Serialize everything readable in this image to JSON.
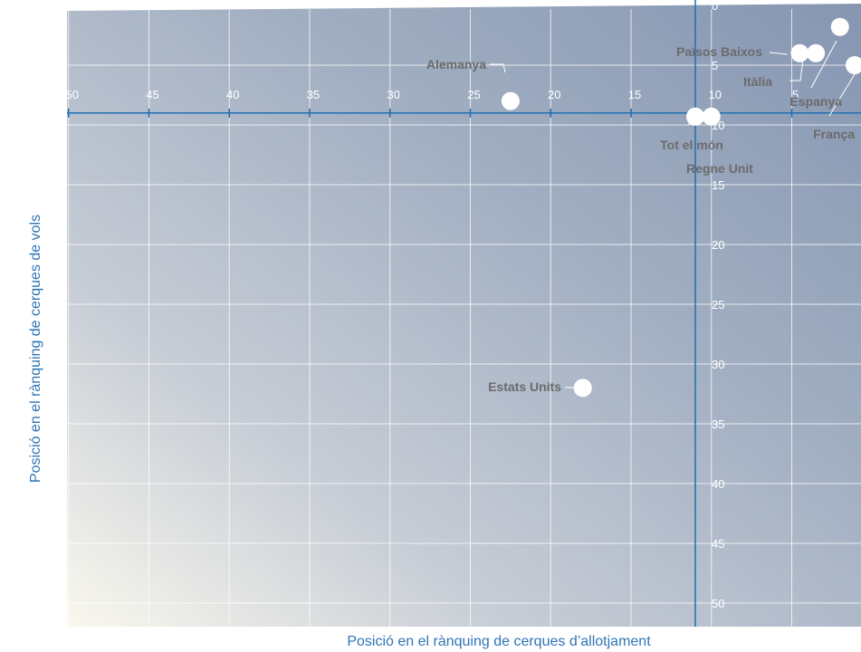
{
  "chart_data": {
    "type": "scatter",
    "title": "",
    "xlabel": "Posició en el rànquing de cerques d’allotjament",
    "ylabel": "Posició en el rànquing de cerques de vols",
    "x_reversed": true,
    "y_reversed": true,
    "xlim": [
      50,
      0
    ],
    "ylim": [
      0,
      52
    ],
    "x_ticks": [
      "50",
      "45",
      "40",
      "35",
      "30",
      "25",
      "20",
      "15",
      "10",
      "5"
    ],
    "y_ticks": [
      "0",
      "5",
      "10",
      "15",
      "20",
      "25",
      "30",
      "35",
      "40",
      "45",
      "50"
    ],
    "grid": true,
    "colors": {
      "axis": "#1f6fb2",
      "axis_title": "#2e74b5",
      "marker": "#ffffff",
      "label": "#6b6b6b",
      "grid": "#ffffff"
    },
    "points": [
      {
        "name": "Alemanya",
        "x": 22.5,
        "y": 8.0
      },
      {
        "name": "Països Baixos",
        "x": 4.5,
        "y": 4.0
      },
      {
        "name": "Itàlia",
        "x": 3.5,
        "y": 4.0
      },
      {
        "name": "Espanya",
        "x": 2.0,
        "y": 1.8
      },
      {
        "name": "França",
        "x": 0.0,
        "y": 5.0
      },
      {
        "name": "Tot el món",
        "x": 11.0,
        "y": 9.3
      },
      {
        "name": "Regne Unit",
        "x": 10.0,
        "y": 9.3
      },
      {
        "name": "Estats Units",
        "x": 18.0,
        "y": 32.0
      }
    ]
  }
}
